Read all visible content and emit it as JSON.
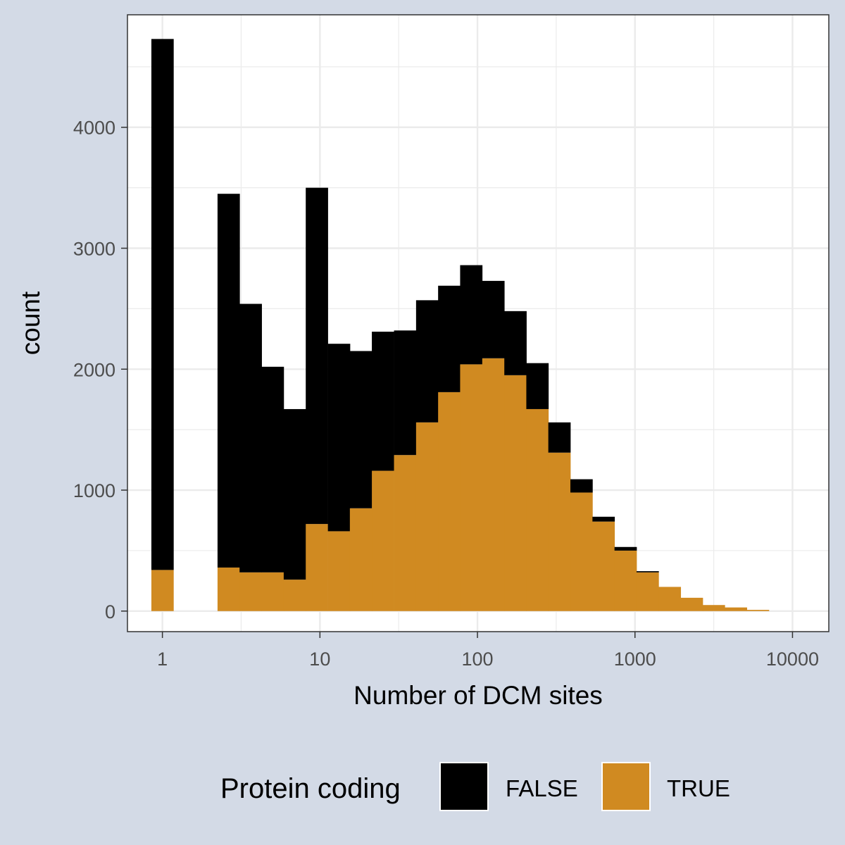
{
  "chart_data": {
    "type": "bar",
    "subtype": "stacked-histogram",
    "xscale": "log10",
    "xlabel": "Number of DCM sites",
    "ylabel": "count",
    "xlim": [
      0.6,
      17000
    ],
    "ylim": [
      -170,
      4930
    ],
    "grid": true,
    "x_ticks": [
      1,
      10,
      100,
      1000,
      10000
    ],
    "x_tick_labels": [
      "1",
      "10",
      "100",
      "1000",
      "10000"
    ],
    "y_ticks": [
      0,
      1000,
      2000,
      3000,
      4000
    ],
    "y_tick_labels": [
      "0",
      "1000",
      "2000",
      "3000",
      "4000"
    ],
    "bin_width_log10": 0.14,
    "bin_centers": [
      1,
      1.38,
      1.91,
      2.63,
      3.63,
      5.01,
      6.92,
      9.55,
      13.2,
      18.2,
      25.1,
      34.7,
      47.9,
      66.1,
      91.2,
      126,
      174,
      240,
      331,
      457,
      631,
      871,
      1202,
      1660,
      2291,
      3162,
      4365,
      6026,
      8318,
      11482
    ],
    "series": [
      {
        "name": "FALSE",
        "color": "#000000",
        "values": [
          4390,
          0,
          0,
          3090,
          2220,
          1700,
          1410,
          2780,
          1550,
          1300,
          1150,
          1030,
          1010,
          880,
          820,
          640,
          530,
          380,
          250,
          110,
          40,
          30,
          10,
          0,
          0,
          0,
          0,
          0,
          0,
          0
        ]
      },
      {
        "name": "TRUE",
        "color": "#d08a21",
        "values": [
          340,
          0,
          0,
          360,
          320,
          320,
          260,
          720,
          660,
          850,
          1160,
          1290,
          1560,
          1810,
          2040,
          2090,
          1950,
          1670,
          1310,
          980,
          740,
          500,
          320,
          200,
          110,
          50,
          30,
          10,
          0,
          0
        ]
      }
    ],
    "legend": {
      "title": "Protein coding",
      "position": "bottom",
      "entries": [
        "FALSE",
        "TRUE"
      ]
    }
  }
}
